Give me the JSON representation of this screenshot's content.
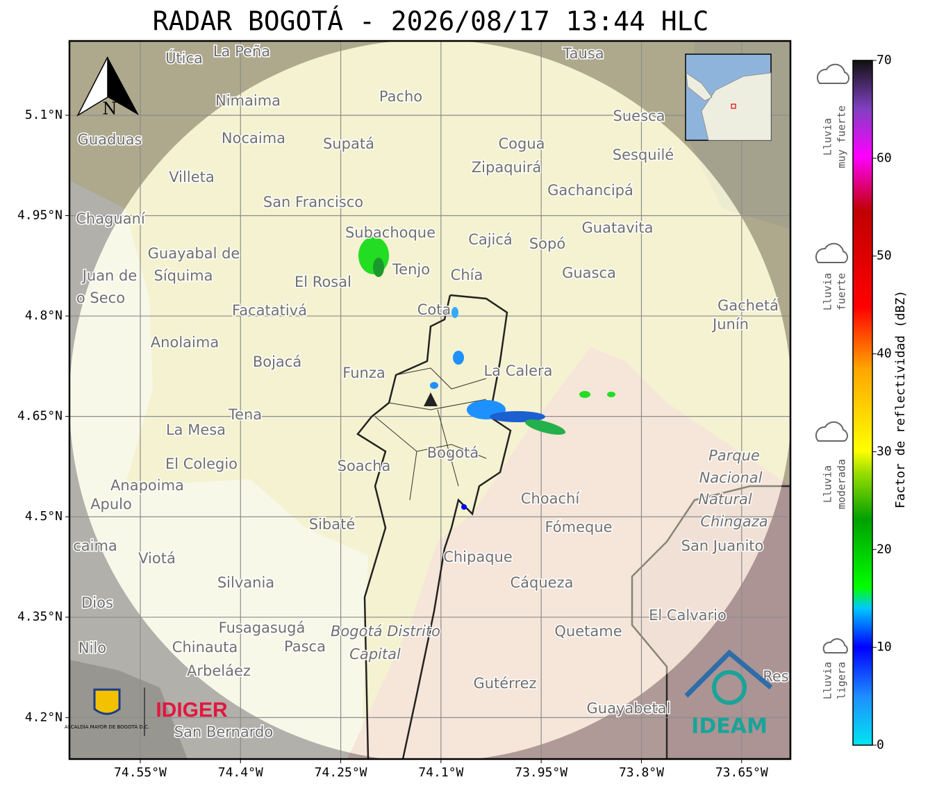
{
  "title": "RADAR BOGOTÁ - 2026/08/17 13:44 HLC",
  "map": {
    "xlim": [
      -74.656,
      -73.577
    ],
    "ylim": [
      4.138,
      5.211
    ],
    "xticks": [
      {
        "value": -74.55,
        "label": "74.55°W"
      },
      {
        "value": -74.4,
        "label": "74.4°W"
      },
      {
        "value": -74.25,
        "label": "74.25°W"
      },
      {
        "value": -74.1,
        "label": "74.1°W"
      },
      {
        "value": -73.95,
        "label": "73.95°W"
      },
      {
        "value": -73.8,
        "label": "73.8°W"
      },
      {
        "value": -73.65,
        "label": "73.65°W"
      }
    ],
    "yticks": [
      {
        "value": 5.1,
        "label": "5.1°N"
      },
      {
        "value": 4.95,
        "label": "4.95°N"
      },
      {
        "value": 4.8,
        "label": "4.8°N"
      },
      {
        "value": 4.65,
        "label": "4.65°N"
      },
      {
        "value": 4.5,
        "label": "4.5°N"
      },
      {
        "value": 4.35,
        "label": "4.35°N"
      },
      {
        "value": 4.2,
        "label": "4.2°N"
      }
    ],
    "compass": "N",
    "places": [
      "Útica",
      "La Peña",
      "Tausa",
      "Pacho",
      "Nimaima",
      "Guaduas",
      "Nocaima",
      "Supatá",
      "Cogua",
      "Suesca",
      "Sesquilé",
      "Zipaquirá",
      "Villeta",
      "Gachancipá",
      "San Francisco",
      "Chaguaní",
      "Subachoque",
      "Cajicá",
      "Sopó",
      "Guatavita",
      "Guayabal de",
      "Síquima",
      "Juan de",
      "o Seco",
      "Tenjo",
      "Chía",
      "Guasca",
      "El Rosal",
      "Facatativá",
      "Gachetá",
      "Junín",
      "Cota",
      "Anolaima",
      "Bojacá",
      "Funza",
      "La Calera",
      "Tena",
      "La Mesa",
      "El Colegio",
      "Soacha",
      "Bogotá",
      "Parque",
      "Nacional",
      "Natural",
      "Chingaza",
      "San Juanito",
      "Anapoima",
      "Apulo",
      "Choachí",
      "Fómeque",
      "Sibaté",
      "caima",
      "Viotá",
      "Chipaque",
      "Cáqueza",
      "Silvania",
      "Dios",
      "El Calvario",
      "Fusagasugá",
      "Quetame",
      "Bogotá Distrito",
      "Capital",
      "Chinauta",
      "Pasca",
      "Nilo",
      "Arbeláez",
      "Gutérrez",
      "Res",
      "Guayabetal",
      "San Bernardo"
    ],
    "logos": {
      "alcaldia": "ALCALDÍA MAYOR DE BOGOTÁ D.C.",
      "idiger": "IDIGER",
      "ideam": "IDEAM"
    }
  },
  "colorbar": {
    "label": "Factor de reflectividad (dBZ)",
    "lim": [
      0,
      70
    ],
    "ticks": [
      0,
      10,
      20,
      30,
      40,
      50,
      60,
      70
    ],
    "categories": [
      [
        "Lluvia",
        "ligera"
      ],
      [
        "Lluvia",
        "moderada"
      ],
      [
        "Lluvia",
        "fuerte"
      ],
      [
        "Lluvia",
        "muy fuerte"
      ]
    ]
  }
}
